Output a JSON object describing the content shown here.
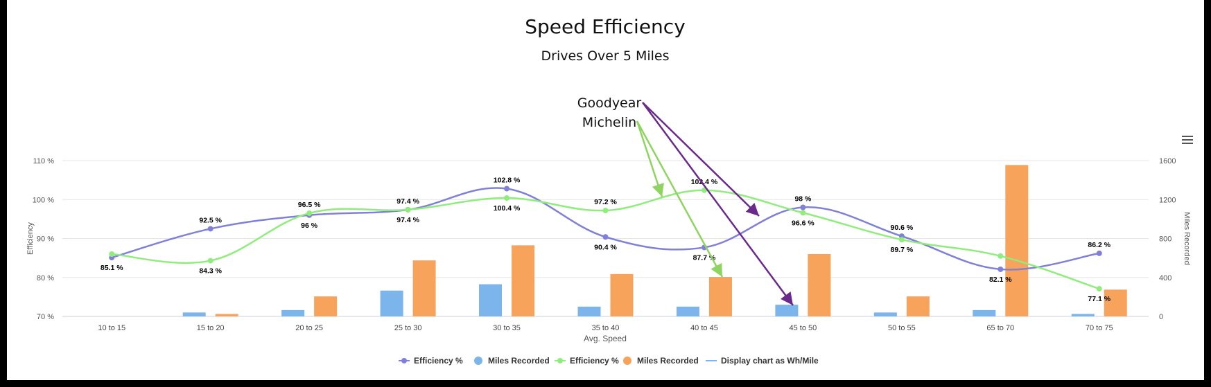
{
  "chart_data": {
    "type": "bar",
    "title": "Speed Efficiency",
    "subtitle": "Drives Over 5 Miles",
    "xlabel": "Avg. Speed",
    "ylabel_left": "Efficiency",
    "ylabel_right": "Miles Recorded",
    "categories": [
      "10 to 15",
      "15 to 20",
      "20 to 25",
      "25 to 30",
      "30 to 35",
      "35 to 40",
      "40 to 45",
      "45 to 50",
      "50 to 55",
      "65 to 70",
      "70 to 75"
    ],
    "ylim_left": [
      70,
      110
    ],
    "yticks_left": [
      70,
      80,
      90,
      100,
      110
    ],
    "ytick_labels_left": [
      "70 %",
      "80 %",
      "90 %",
      "100 %",
      "110 %"
    ],
    "ylim_right": [
      0,
      1600
    ],
    "yticks_right": [
      0,
      400,
      800,
      1200,
      1600
    ],
    "ytick_labels_right": [
      "0",
      "400",
      "800",
      "1200",
      "1600"
    ],
    "grid": true,
    "legend_position": "bottom",
    "series": [
      {
        "name": "Efficiency %",
        "type": "line",
        "axis": "left",
        "color": "#8080d8",
        "values": [
          85.1,
          92.5,
          96,
          97.4,
          102.8,
          90.4,
          87.7,
          98,
          90.6,
          82.1,
          86.2
        ],
        "labels": [
          "85.1 %",
          "92.5 %",
          "96 %",
          "97.4 %",
          "102.8 %",
          "90.4 %",
          "87.7 %",
          "98 %",
          "90.6 %",
          "82.1 %",
          "86.2 %"
        ]
      },
      {
        "name": "Miles Recorded",
        "type": "bar",
        "axis": "right",
        "color": "#7cb5ec",
        "values": [
          0,
          40,
          65,
          265,
          330,
          100,
          100,
          120,
          40,
          65,
          25
        ]
      },
      {
        "name": "Efficiency %",
        "type": "line",
        "axis": "left",
        "color": "#90ed7d",
        "values": [
          86.0,
          84.3,
          96.5,
          97.4,
          100.4,
          97.2,
          102.4,
          96.6,
          89.7,
          85.5,
          77.1
        ],
        "labels": [
          "",
          "84.3 %",
          "96.5 %",
          "97.4 %",
          "100.4 %",
          "97.2 %",
          "102.4 %",
          "96.6 %",
          "89.7 %",
          "",
          "77.1 %"
        ]
      },
      {
        "name": "Miles Recorded",
        "type": "bar",
        "axis": "right",
        "color": "#f7a35c",
        "values": [
          0,
          25,
          205,
          575,
          730,
          435,
          405,
          640,
          205,
          1555,
          275
        ]
      },
      {
        "name": "Display chart as Wh/Mile",
        "type": "toggle",
        "color": "#7cb5ec"
      }
    ],
    "annotations": [
      {
        "text": "Goodyear",
        "color": "#6a2a8c"
      },
      {
        "text": "Michelin",
        "color": "#8fd460"
      }
    ]
  }
}
